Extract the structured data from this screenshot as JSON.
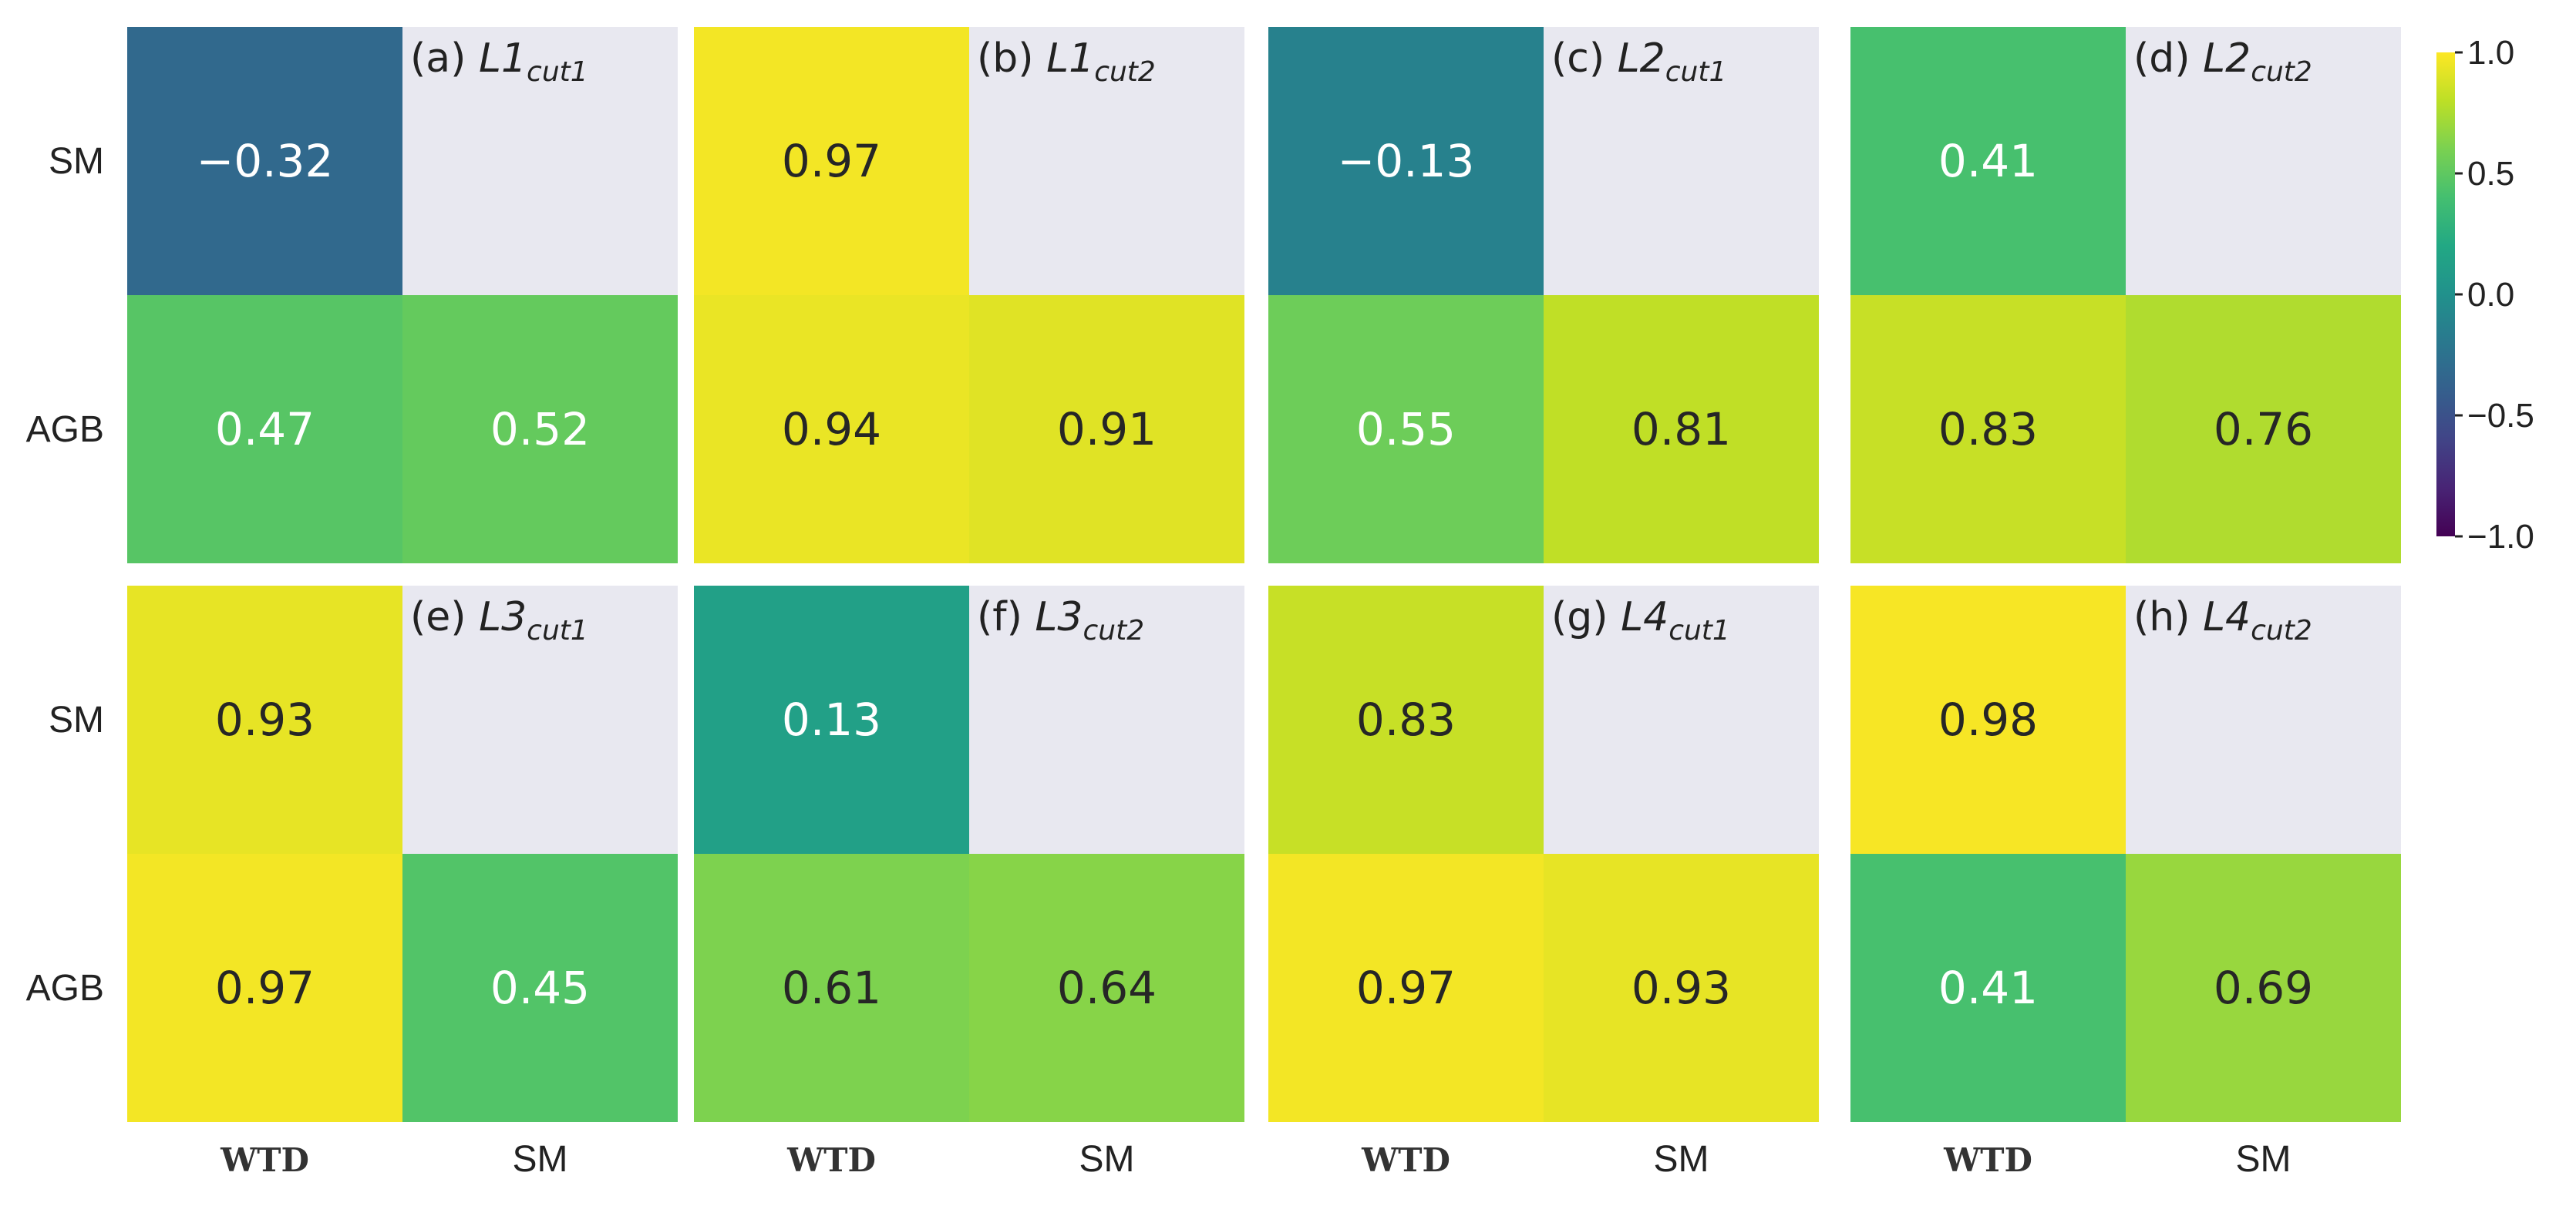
{
  "chart_data": {
    "type": "heatmap",
    "colormap": "viridis",
    "vmin": -1.0,
    "vmax": 1.0,
    "empty_cell_color": "#e8e8f0",
    "row_labels": [
      "SM",
      "AGB"
    ],
    "col_labels": [
      "WTD",
      "SM"
    ],
    "colorbar_ticks": [
      "1.0",
      "0.5",
      "0.0",
      "−0.5",
      "−1.0"
    ],
    "panels": [
      {
        "id": "a",
        "label_prefix": "(a) ",
        "label_main": "L1",
        "label_sub": "cut1",
        "values": [
          [
            -0.32,
            null
          ],
          [
            0.47,
            0.52
          ]
        ],
        "text": [
          [
            "−0.32",
            ""
          ],
          [
            "0.47",
            "0.52"
          ]
        ]
      },
      {
        "id": "b",
        "label_prefix": "(b) ",
        "label_main": "L1",
        "label_sub": "cut2",
        "values": [
          [
            0.97,
            null
          ],
          [
            0.94,
            0.91
          ]
        ],
        "text": [
          [
            "0.97",
            ""
          ],
          [
            "0.94",
            "0.91"
          ]
        ]
      },
      {
        "id": "c",
        "label_prefix": "(c) ",
        "label_main": "L2",
        "label_sub": "cut1",
        "values": [
          [
            -0.13,
            null
          ],
          [
            0.55,
            0.81
          ]
        ],
        "text": [
          [
            "−0.13",
            ""
          ],
          [
            "0.55",
            "0.81"
          ]
        ]
      },
      {
        "id": "d",
        "label_prefix": "(d) ",
        "label_main": "L2",
        "label_sub": "cut2",
        "values": [
          [
            0.41,
            null
          ],
          [
            0.83,
            0.76
          ]
        ],
        "text": [
          [
            "0.41",
            ""
          ],
          [
            "0.83",
            "0.76"
          ]
        ]
      },
      {
        "id": "e",
        "label_prefix": "(e) ",
        "label_main": "L3",
        "label_sub": "cut1",
        "values": [
          [
            0.93,
            null
          ],
          [
            0.97,
            0.45
          ]
        ],
        "text": [
          [
            "0.93",
            ""
          ],
          [
            "0.97",
            "0.45"
          ]
        ]
      },
      {
        "id": "f",
        "label_prefix": "(f) ",
        "label_main": "L3",
        "label_sub": "cut2",
        "values": [
          [
            0.13,
            null
          ],
          [
            0.61,
            0.64
          ]
        ],
        "text": [
          [
            "0.13",
            ""
          ],
          [
            "0.61",
            "0.64"
          ]
        ]
      },
      {
        "id": "g",
        "label_prefix": "(g) ",
        "label_main": "L4",
        "label_sub": "cut1",
        "values": [
          [
            0.83,
            null
          ],
          [
            0.97,
            0.93
          ]
        ],
        "text": [
          [
            "0.83",
            ""
          ],
          [
            "0.97",
            "0.93"
          ]
        ]
      },
      {
        "id": "h",
        "label_prefix": "(h) ",
        "label_main": "L4",
        "label_sub": "cut2",
        "values": [
          [
            0.98,
            null
          ],
          [
            0.41,
            0.69
          ]
        ],
        "text": [
          [
            "0.98",
            ""
          ],
          [
            "0.41",
            "0.69"
          ]
        ]
      }
    ]
  }
}
